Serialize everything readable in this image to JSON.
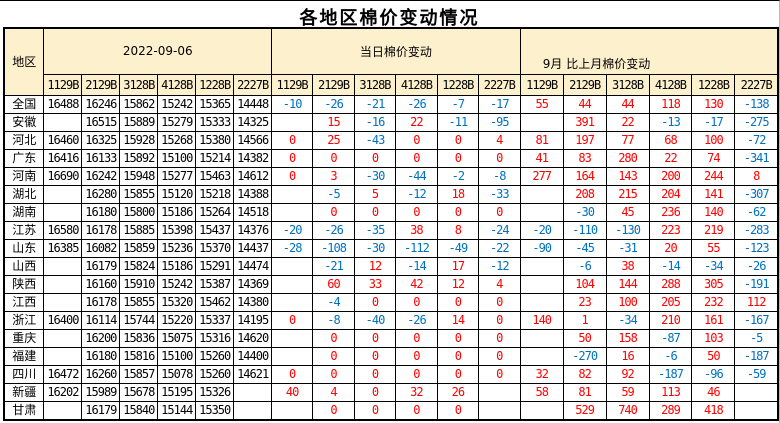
{
  "title": "各地区棉价变动情况",
  "colors": {
    "header_bg": "#fdf0cd",
    "positive_value": "#ff0000",
    "negative_value": "#0070c0",
    "grid_border": "#000000",
    "background": "#ffffff"
  },
  "chart_data": {
    "type": "table",
    "title": "各地区棉价变动情况",
    "region_header": "地区",
    "groups": [
      {
        "label": "2022-09-06",
        "columns": [
          "1129B",
          "2129B",
          "3128B",
          "4128B",
          "1228B",
          "2227B"
        ]
      },
      {
        "label": "当日棉价变动",
        "columns": [
          "1129B",
          "2129B",
          "3128B",
          "4128B",
          "1228B",
          "2227B"
        ]
      },
      {
        "label": "9月 比上月棉价变动",
        "columns": [
          "1129B",
          "2129B",
          "3128B",
          "4128B",
          "1228B",
          "2227B"
        ]
      }
    ],
    "value_colors": {
      "positive": "#ff0000",
      "negative": "#0070c0",
      "price": "#000000"
    },
    "rows": [
      {
        "region": "全国",
        "prices": [
          16488,
          16246,
          15862,
          15242,
          15365,
          14448
        ],
        "daily": [
          -10,
          -26,
          -21,
          -26,
          -7,
          -17
        ],
        "monthly": [
          55,
          44,
          44,
          118,
          130,
          -138
        ]
      },
      {
        "region": "安徽",
        "prices": [
          null,
          16515,
          15889,
          15279,
          15333,
          14325
        ],
        "daily": [
          null,
          15,
          -16,
          22,
          -11,
          -95
        ],
        "monthly": [
          null,
          391,
          22,
          -13,
          -17,
          -275
        ]
      },
      {
        "region": "河北",
        "prices": [
          16460,
          16325,
          15928,
          15268,
          15380,
          14566
        ],
        "daily": [
          0,
          25,
          -43,
          0,
          0,
          4
        ],
        "monthly": [
          81,
          197,
          77,
          68,
          100,
          -72
        ]
      },
      {
        "region": "广东",
        "prices": [
          16416,
          16133,
          15892,
          15100,
          15214,
          14382
        ],
        "daily": [
          0,
          0,
          0,
          0,
          0,
          0
        ],
        "monthly": [
          41,
          83,
          280,
          22,
          74,
          -341
        ]
      },
      {
        "region": "河南",
        "prices": [
          16690,
          16242,
          15948,
          15277,
          15463,
          14612
        ],
        "daily": [
          0,
          3,
          -30,
          -44,
          -2,
          -8
        ],
        "monthly": [
          277,
          164,
          143,
          200,
          244,
          8
        ]
      },
      {
        "region": "湖北",
        "prices": [
          null,
          16280,
          15855,
          15120,
          15218,
          14388
        ],
        "daily": [
          null,
          -5,
          5,
          -12,
          18,
          -33
        ],
        "monthly": [
          null,
          208,
          215,
          204,
          141,
          -307
        ]
      },
      {
        "region": "湖南",
        "prices": [
          null,
          16180,
          15800,
          15186,
          15264,
          14518
        ],
        "daily": [
          null,
          0,
          0,
          0,
          0,
          0
        ],
        "monthly": [
          null,
          -30,
          45,
          236,
          140,
          -62
        ]
      },
      {
        "region": "江苏",
        "prices": [
          16580,
          16178,
          15885,
          15398,
          15437,
          14376
        ],
        "daily": [
          -20,
          -26,
          -35,
          38,
          8,
          -24
        ],
        "monthly": [
          -20,
          -110,
          -130,
          223,
          219,
          -283
        ]
      },
      {
        "region": "山东",
        "prices": [
          16385,
          16082,
          15859,
          15236,
          15370,
          14437
        ],
        "daily": [
          -28,
          -108,
          -30,
          -112,
          -49,
          -22
        ],
        "monthly": [
          -90,
          -45,
          -31,
          20,
          55,
          -123
        ]
      },
      {
        "region": "山西",
        "prices": [
          null,
          16179,
          15824,
          15186,
          15291,
          14474
        ],
        "daily": [
          null,
          -21,
          12,
          -14,
          17,
          -12
        ],
        "monthly": [
          null,
          -6,
          38,
          -14,
          -34,
          -26
        ]
      },
      {
        "region": "陕西",
        "prices": [
          null,
          16160,
          15910,
          15242,
          15387,
          14369
        ],
        "daily": [
          null,
          60,
          33,
          42,
          12,
          4
        ],
        "monthly": [
          null,
          104,
          144,
          288,
          305,
          -191
        ]
      },
      {
        "region": "江西",
        "prices": [
          null,
          16178,
          15855,
          15320,
          15462,
          14380
        ],
        "daily": [
          null,
          -4,
          0,
          0,
          0,
          0
        ],
        "monthly": [
          null,
          23,
          100,
          205,
          232,
          112
        ]
      },
      {
        "region": "浙江",
        "prices": [
          16400,
          16114,
          15744,
          15220,
          15337,
          14195
        ],
        "daily": [
          0,
          -8,
          -40,
          -26,
          14,
          0
        ],
        "monthly": [
          140,
          1,
          -34,
          210,
          161,
          -167
        ]
      },
      {
        "region": "重庆",
        "prices": [
          null,
          16200,
          15836,
          15075,
          15316,
          14620
        ],
        "daily": [
          null,
          0,
          0,
          0,
          0,
          0
        ],
        "monthly": [
          null,
          50,
          158,
          -87,
          103,
          -5
        ]
      },
      {
        "region": "福建",
        "prices": [
          null,
          16180,
          15816,
          15100,
          15260,
          14400
        ],
        "daily": [
          null,
          0,
          0,
          0,
          0,
          0
        ],
        "monthly": [
          null,
          -270,
          16,
          -6,
          50,
          -187
        ]
      },
      {
        "region": "四川",
        "prices": [
          16472,
          16260,
          15857,
          15078,
          15260,
          14621
        ],
        "daily": [
          0,
          0,
          0,
          0,
          0,
          0
        ],
        "monthly": [
          32,
          82,
          92,
          -187,
          -96,
          -59
        ]
      },
      {
        "region": "新疆",
        "prices": [
          16202,
          15989,
          15678,
          15195,
          15326,
          null
        ],
        "daily": [
          40,
          4,
          0,
          32,
          26,
          null
        ],
        "monthly": [
          58,
          81,
          59,
          113,
          46,
          null
        ]
      },
      {
        "region": "甘肃",
        "prices": [
          null,
          16179,
          15840,
          15144,
          15350,
          null
        ],
        "daily": [
          null,
          0,
          0,
          0,
          0,
          null
        ],
        "monthly": [
          null,
          529,
          740,
          289,
          418,
          null
        ]
      }
    ]
  }
}
